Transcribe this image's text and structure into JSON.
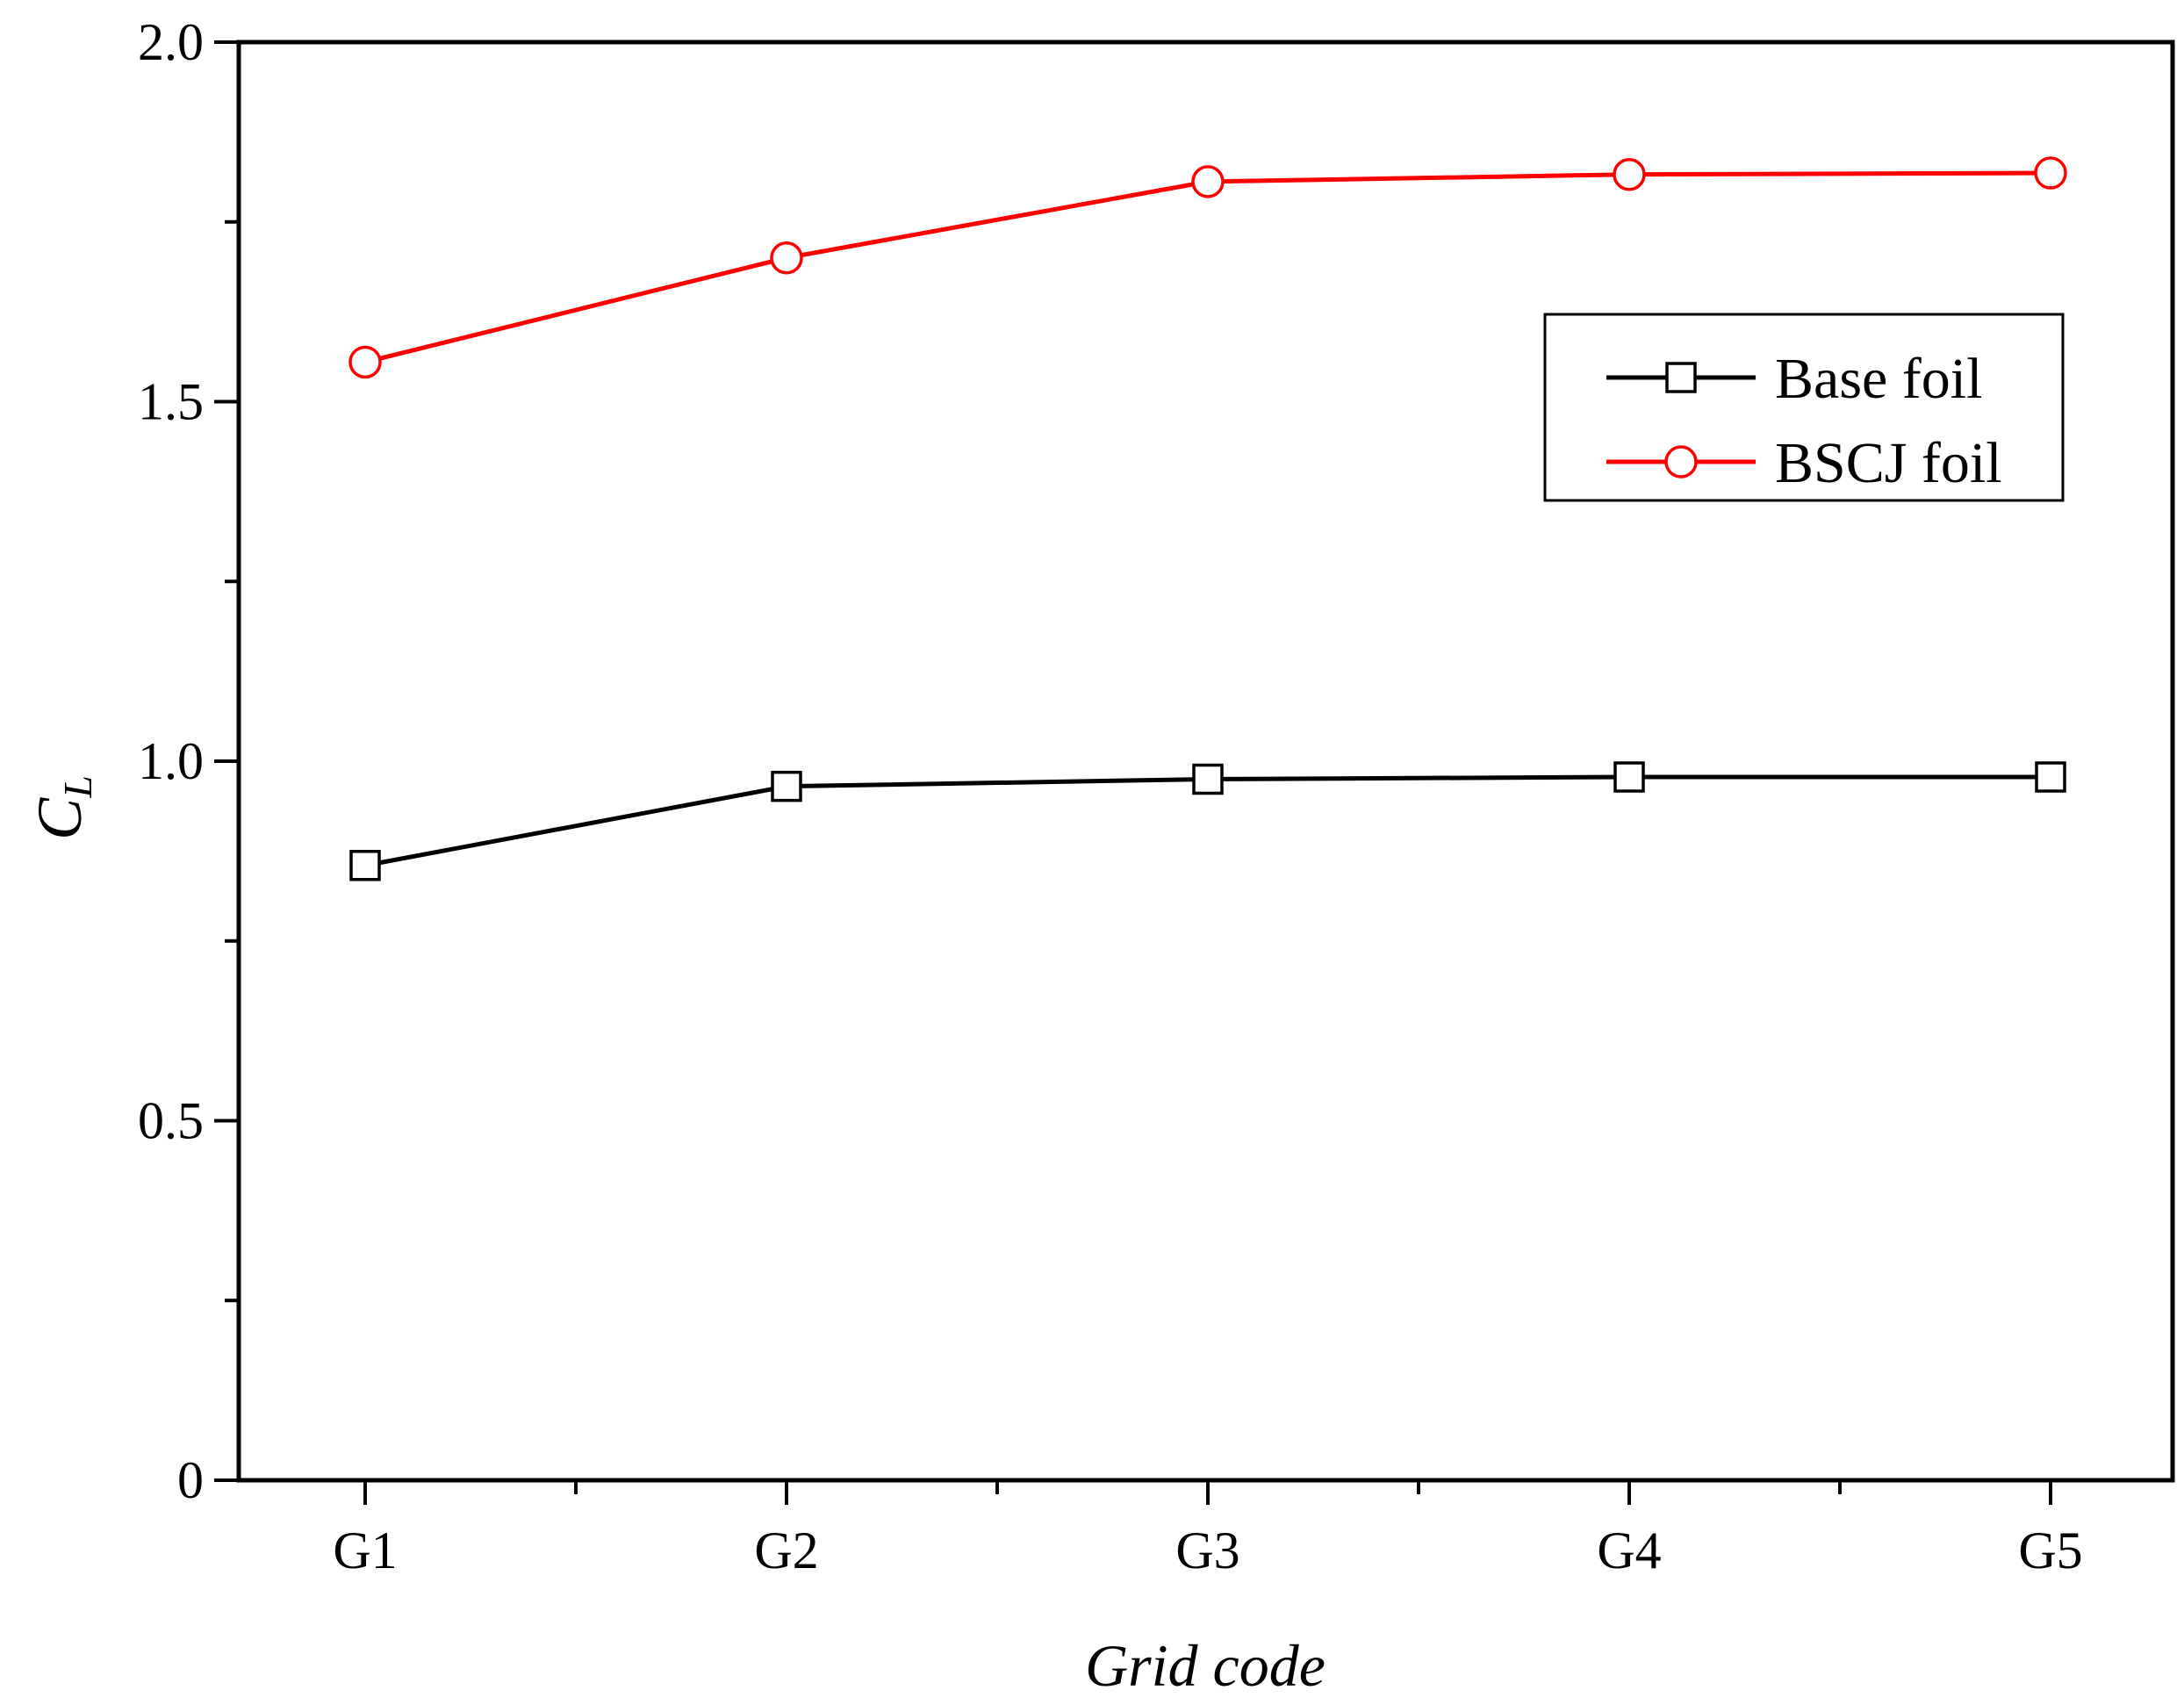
{
  "chart_data": {
    "type": "line",
    "categories": [
      "G1",
      "G2",
      "G3",
      "G4",
      "G5"
    ],
    "series": [
      {
        "name": "Base foil",
        "values": [
          0.855,
          0.965,
          0.975,
          0.978,
          0.978
        ],
        "color": "#000000",
        "marker": "square"
      },
      {
        "name": "BSCJ foil",
        "values": [
          1.555,
          1.7,
          1.806,
          1.816,
          1.818
        ],
        "color": "#ff0000",
        "marker": "circle"
      }
    ],
    "xlabel": "Grid code",
    "ylabel": {
      "main": "C",
      "sub": "L"
    },
    "ylim": [
      0,
      2.0
    ],
    "yticks": [
      0,
      0.5,
      1.0,
      1.5,
      2.0
    ],
    "ytick_labels": [
      "0",
      "0.5",
      "1.0",
      "1.5",
      "2.0"
    ],
    "legend_position": "upper-right",
    "grid": false
  }
}
